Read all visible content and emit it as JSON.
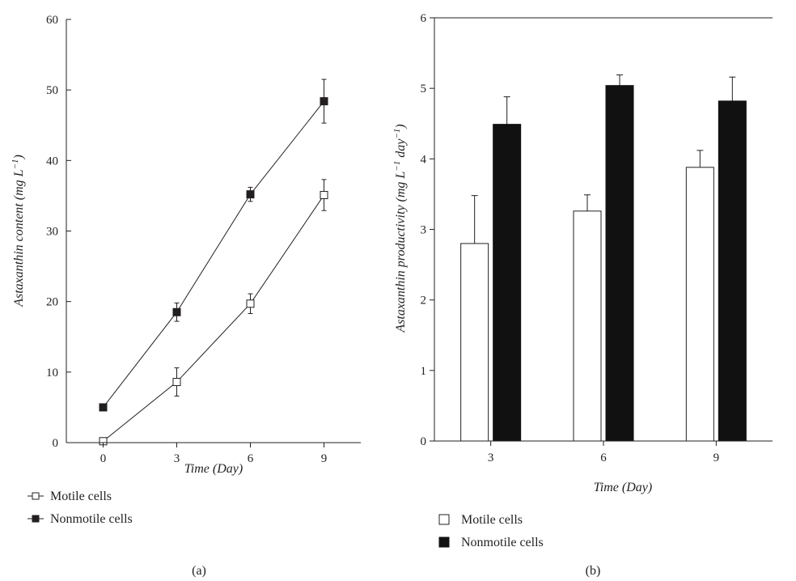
{
  "chart_data": [
    {
      "type": "line",
      "panel_label": "(a)",
      "x": [
        0,
        3,
        6,
        9
      ],
      "xticks": [
        "0",
        "3",
        "6",
        "9"
      ],
      "xlim": [
        -1.5,
        10.5
      ],
      "ylim": [
        0,
        60
      ],
      "yticks": [
        "0",
        "10",
        "20",
        "30",
        "40",
        "50",
        "60"
      ],
      "xlabel": "Time (Day)",
      "ylabel": "Astaxanthin content (mg L",
      "ylabel_sup": "−1",
      "ylabel_end": ")",
      "grid": false,
      "legend_position": "bottom-left",
      "series": [
        {
          "name": "Motile cells",
          "marker": "open-square",
          "color": "#231f20",
          "values": [
            0.2,
            8.6,
            19.7,
            35.1
          ],
          "errors": [
            0,
            2.0,
            1.4,
            2.2
          ]
        },
        {
          "name": "Nonmotile cells",
          "marker": "filled-square",
          "color": "#231f20",
          "values": [
            5.0,
            18.5,
            35.2,
            48.4
          ],
          "errors": [
            0,
            1.3,
            1.0,
            3.1
          ]
        }
      ]
    },
    {
      "type": "bar",
      "panel_label": "(b)",
      "categories": [
        "3",
        "6",
        "9"
      ],
      "ylim": [
        0,
        6
      ],
      "yticks": [
        "0",
        "1",
        "2",
        "3",
        "4",
        "5",
        "6"
      ],
      "xlabel": "Time (Day)",
      "ylabel": "Astaxanthin productivity (mg L",
      "ylabel_sup1": "−1",
      "ylabel_mid": " day",
      "ylabel_sup2": "−1",
      "ylabel_end": ")",
      "grid": false,
      "legend_position": "bottom-left",
      "series": [
        {
          "name": "Motile cells",
          "fill": "#ffffff",
          "stroke": "#231f20",
          "values": [
            2.8,
            3.26,
            3.88
          ],
          "errors": [
            0.68,
            0.23,
            0.24
          ]
        },
        {
          "name": "Nonmotile cells",
          "fill": "#111111",
          "stroke": "#111111",
          "values": [
            4.49,
            5.04,
            4.82
          ],
          "errors": [
            0.39,
            0.15,
            0.34
          ]
        }
      ]
    }
  ]
}
